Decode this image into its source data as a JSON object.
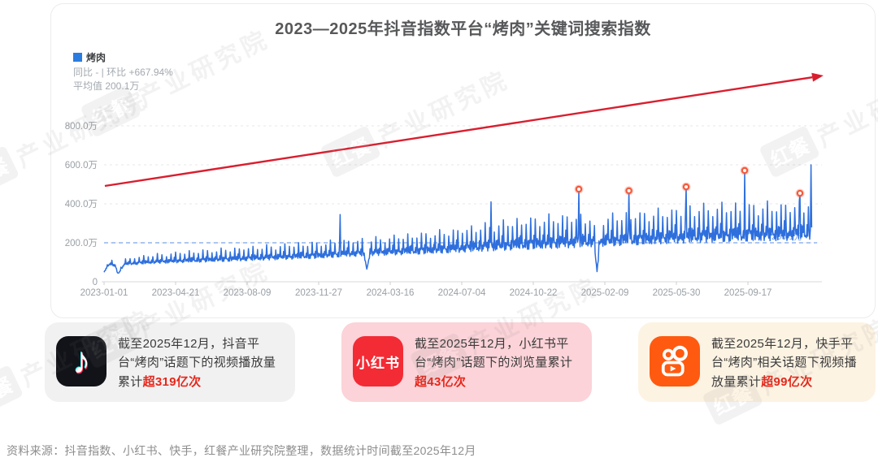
{
  "watermark": {
    "brand": "红餐",
    "text": "产业研究院"
  },
  "chart": {
    "title": "2023—2025年抖音指数平台“烤肉”关键词搜索指数",
    "legend_label": "烤肉",
    "stats_line1": "同比 - | 环比 +667.94%",
    "stats_line2": "平均值 200.1万"
  },
  "chart_data": {
    "type": "line",
    "title": "2023—2025年抖音指数平台“烤肉”关键词搜索指数",
    "series_name": "烤肉",
    "unit": "万",
    "ylim": [
      0,
      800
    ],
    "grid": true,
    "legend_position": "top-left",
    "average_value": 200.1,
    "average_label": "200.1万",
    "y_ticks": [
      {
        "value": 0,
        "label": "0"
      },
      {
        "value": 200,
        "label": "200.0万"
      },
      {
        "value": 400,
        "label": "400.0万"
      },
      {
        "value": 600,
        "label": "600.0万"
      },
      {
        "value": 800,
        "label": "800.0万"
      }
    ],
    "x_ticks": [
      {
        "day": 0,
        "label": "2023-01-01"
      },
      {
        "day": 110,
        "label": "2023-04-21"
      },
      {
        "day": 220,
        "label": "2023-08-09"
      },
      {
        "day": 330,
        "label": "2023-11-27"
      },
      {
        "day": 440,
        "label": "2024-03-16"
      },
      {
        "day": 550,
        "label": "2024-07-04"
      },
      {
        "day": 660,
        "label": "2024-10-22"
      },
      {
        "day": 770,
        "label": "2025-02-09"
      },
      {
        "day": 880,
        "label": "2025-05-30"
      },
      {
        "day": 990,
        "label": "2025-09-17"
      }
    ],
    "days_total": 1088,
    "envelope": [
      [
        0,
        48,
        60
      ],
      [
        8,
        85,
        112
      ],
      [
        18,
        78,
        105
      ],
      [
        22,
        42,
        58
      ],
      [
        32,
        85,
        118
      ],
      [
        70,
        92,
        140
      ],
      [
        130,
        98,
        158
      ],
      [
        200,
        105,
        175
      ],
      [
        270,
        112,
        192
      ],
      [
        340,
        120,
        208
      ],
      [
        362,
        126,
        215
      ],
      [
        410,
        132,
        225
      ],
      [
        470,
        138,
        245
      ],
      [
        530,
        146,
        268
      ],
      [
        590,
        155,
        300
      ],
      [
        650,
        163,
        330
      ],
      [
        710,
        170,
        350
      ],
      [
        760,
        178,
        340
      ],
      [
        810,
        185,
        355
      ],
      [
        870,
        193,
        378
      ],
      [
        930,
        200,
        398
      ],
      [
        990,
        205,
        405
      ],
      [
        1050,
        208,
        408
      ],
      [
        1088,
        215,
        415
      ]
    ],
    "weekly_profile": [
      0.1,
      0.32,
      0.08,
      0.42,
      0.15,
      1.0,
      0.25
    ],
    "spikes": [
      {
        "day": 363,
        "value": 345
      },
      {
        "day": 595,
        "value": 410
      },
      {
        "day": 730,
        "value": 475,
        "marked": true
      },
      {
        "day": 807,
        "value": 467,
        "marked": true
      },
      {
        "day": 895,
        "value": 487,
        "marked": true
      },
      {
        "day": 985,
        "value": 571,
        "marked": true
      },
      {
        "day": 1070,
        "value": 454,
        "marked": true
      },
      {
        "day": 1087,
        "value": 600
      }
    ],
    "dips": [
      {
        "day": 21,
        "value": 45,
        "width": 4
      },
      {
        "day": 404,
        "value": 65,
        "width": 5
      },
      {
        "day": 758,
        "value": 52,
        "width": 5
      }
    ],
    "colors": {
      "line": "#2e6fdd",
      "average": "#7aa3ea",
      "marker": "#f25a3c",
      "trend_arrow": "#d91e2e",
      "grid": "#e7e7e7",
      "axis_label": "#9aa0a6"
    }
  },
  "cards": [
    {
      "platform": "douyin",
      "bg": "#f1f1f2",
      "icon_bg": "#111319",
      "segments": [
        {
          "text": "截至2025年12月，抖音平台“烤肉”话题下的视频播放量累计",
          "highlight": false
        },
        {
          "text": "超319亿次",
          "highlight": true
        }
      ]
    },
    {
      "platform": "xiaohongshu",
      "bg": "#fbd3d8",
      "icon_bg": "#f32b35",
      "icon_label": "小红书",
      "segments": [
        {
          "text": "截至2025年12月，小红书平台“烤肉”话题下的浏览量累计",
          "highlight": false
        },
        {
          "text": "超43亿次",
          "highlight": true
        }
      ]
    },
    {
      "platform": "kuaishou",
      "bg": "#fdf3e3",
      "icon_bg": "#ff5a10",
      "segments": [
        {
          "text": "截至2025年12月，快手平台“烤肉”相关话题下视频播放量累计",
          "highlight": false
        },
        {
          "text": "超99亿次",
          "highlight": true
        }
      ]
    }
  ],
  "source_note": "资料来源：抖音指数、小红书、快手，红餐产业研究院整理，数据统计时间截至2025年12月"
}
